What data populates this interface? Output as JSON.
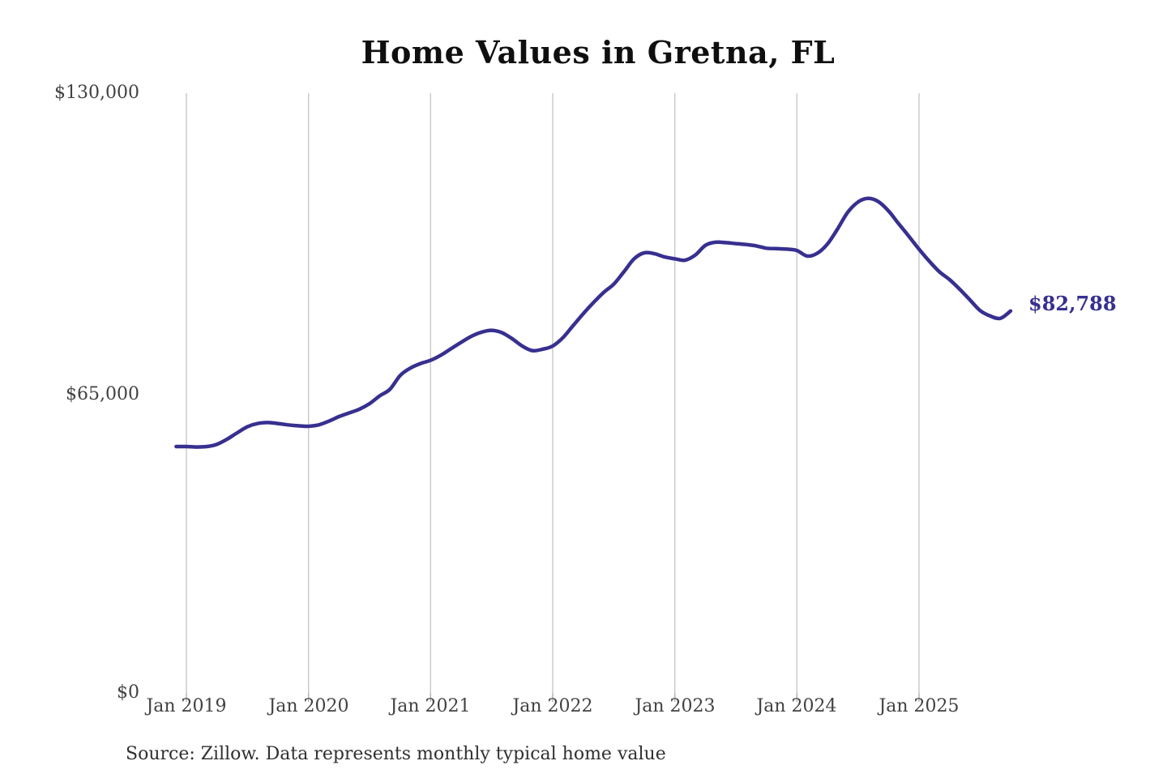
{
  "source_note": "Source: Zillow. Data represents monthly typical home value",
  "chart_data": {
    "type": "line",
    "title": "Home Values in Gretna, FL",
    "series_name": "Typical home value",
    "unit": "USD",
    "frequency": "monthly",
    "legend": "none",
    "grid": "vertical-only",
    "line_color": "#37308f",
    "gridline_color": "#c8c8c8",
    "axis_text_color": "#424242",
    "ylim": [
      0,
      130000
    ],
    "y_ticks": [
      {
        "value": 130000,
        "label": "$130,000"
      },
      {
        "value": 65000,
        "label": "$65,000"
      },
      {
        "value": 0,
        "label": "$0"
      }
    ],
    "x_tick_labels": [
      "Jan 2019",
      "Jan 2020",
      "Jan 2021",
      "Jan 2022",
      "Jan 2023",
      "Jan 2024",
      "Jan 2025"
    ],
    "final_value": 82788,
    "final_value_label": "$82,788",
    "x": [
      "2018-12",
      "2019-01",
      "2019-02",
      "2019-03",
      "2019-04",
      "2019-05",
      "2019-06",
      "2019-07",
      "2019-08",
      "2019-09",
      "2019-10",
      "2019-11",
      "2019-12",
      "2020-01",
      "2020-02",
      "2020-03",
      "2020-04",
      "2020-05",
      "2020-06",
      "2020-07",
      "2020-08",
      "2020-09",
      "2020-10",
      "2020-11",
      "2020-12",
      "2021-01",
      "2021-02",
      "2021-03",
      "2021-04",
      "2021-05",
      "2021-06",
      "2021-07",
      "2021-08",
      "2021-09",
      "2021-10",
      "2021-11",
      "2021-12",
      "2022-01",
      "2022-02",
      "2022-03",
      "2022-04",
      "2022-05",
      "2022-06",
      "2022-07",
      "2022-08",
      "2022-09",
      "2022-10",
      "2022-11",
      "2022-12",
      "2023-01",
      "2023-02",
      "2023-03",
      "2023-04",
      "2023-05",
      "2023-06",
      "2023-07",
      "2023-08",
      "2023-09",
      "2023-10",
      "2023-11",
      "2023-12",
      "2024-01",
      "2024-02",
      "2024-03",
      "2024-04",
      "2024-05",
      "2024-06",
      "2024-07",
      "2024-08",
      "2024-09",
      "2024-10",
      "2024-11",
      "2024-12",
      "2025-01",
      "2025-02",
      "2025-03",
      "2025-04",
      "2025-05",
      "2025-06",
      "2025-07",
      "2025-08",
      "2025-09",
      "2025-10"
    ],
    "values": [
      53400,
      53400,
      53300,
      53400,
      53900,
      55000,
      56400,
      57700,
      58400,
      58600,
      58400,
      58100,
      57900,
      57800,
      58100,
      58900,
      59900,
      60700,
      61500,
      62700,
      64400,
      65800,
      68800,
      70400,
      71400,
      72100,
      73200,
      74600,
      76000,
      77300,
      78200,
      78600,
      78100,
      76800,
      75200,
      74200,
      74500,
      75200,
      77000,
      79600,
      82200,
      84600,
      86800,
      88600,
      91300,
      94100,
      95400,
      95200,
      94500,
      94100,
      93800,
      94900,
      97000,
      97700,
      97600,
      97400,
      97200,
      96900,
      96400,
      96300,
      96200,
      95900,
      94700,
      95300,
      97300,
      100600,
      104200,
      106400,
      107200,
      106500,
      104500,
      101700,
      99000,
      96200,
      93600,
      91300,
      89600,
      87500,
      85200,
      82900,
      81700,
      81200,
      82788
    ]
  }
}
